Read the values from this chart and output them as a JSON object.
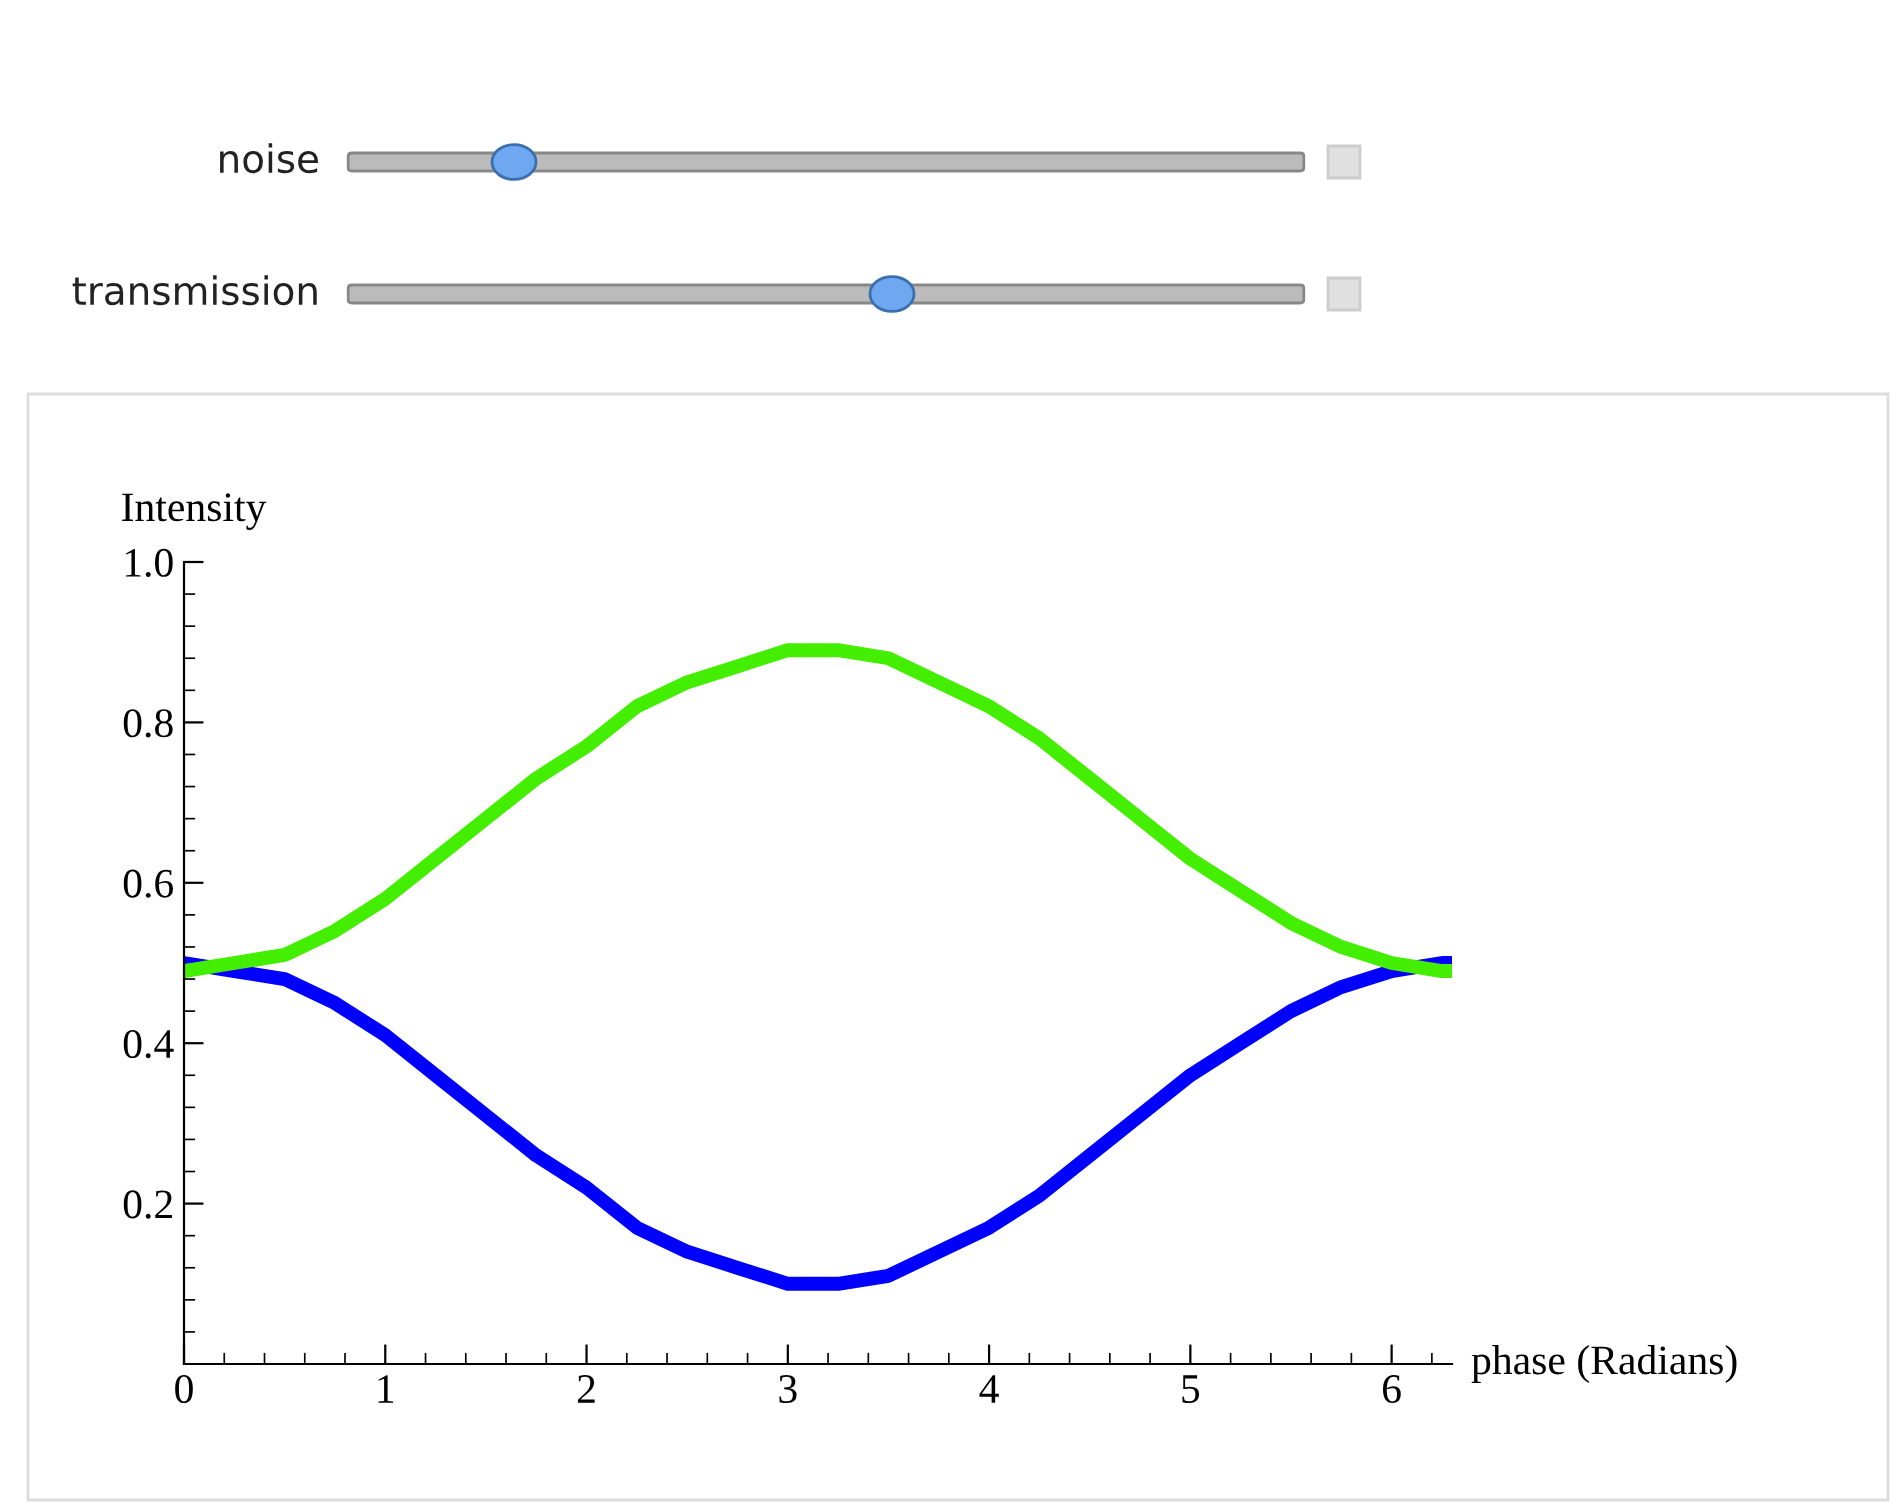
{
  "chart_data": {
    "type": "line",
    "xlabel": "phase (Radians)",
    "ylabel": "Intensity",
    "annotations": [
      "noise",
      "transmission"
    ],
    "xlim": [
      0,
      6.3
    ],
    "ylim": [
      0,
      1.0
    ],
    "xticks": [
      0,
      1,
      2,
      3,
      4,
      5,
      6
    ],
    "yticks": [
      {
        "value": 0.2,
        "label": "0.2"
      },
      {
        "value": 0.4,
        "label": "0.4"
      },
      {
        "value": 0.6,
        "label": "0.6"
      },
      {
        "value": 0.8,
        "label": "0.8"
      },
      {
        "value": 1.0,
        "label": "1.0"
      }
    ],
    "x": [
      0,
      0.25,
      0.5,
      0.75,
      1,
      1.25,
      1.5,
      1.75,
      2,
      2.25,
      2.5,
      2.75,
      3,
      3.25,
      3.5,
      3.75,
      4,
      4.25,
      4.5,
      4.75,
      5,
      5.25,
      5.5,
      5.75,
      6,
      6.25,
      6.3
    ],
    "series": [
      {
        "color": "#0000ff",
        "values": [
          0.5,
          0.49,
          0.48,
          0.45,
          0.41,
          0.36,
          0.31,
          0.26,
          0.22,
          0.17,
          0.14,
          0.12,
          0.1,
          0.1,
          0.11,
          0.14,
          0.17,
          0.21,
          0.26,
          0.31,
          0.36,
          0.4,
          0.44,
          0.47,
          0.49,
          0.5,
          0.5
        ]
      },
      {
        "color": "#44ee00",
        "values": [
          0.49,
          0.5,
          0.51,
          0.54,
          0.58,
          0.63,
          0.68,
          0.73,
          0.77,
          0.82,
          0.85,
          0.87,
          0.89,
          0.89,
          0.88,
          0.85,
          0.82,
          0.78,
          0.73,
          0.68,
          0.63,
          0.59,
          0.55,
          0.52,
          0.5,
          0.49,
          0.49
        ]
      }
    ],
    "grid": false
  }
}
